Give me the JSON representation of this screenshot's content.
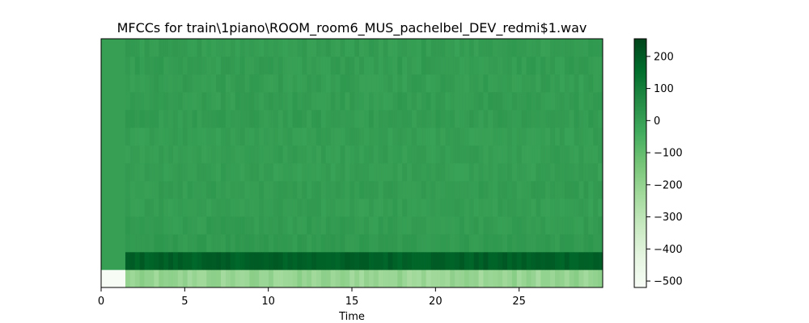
{
  "chart_data": {
    "type": "heatmap",
    "title": "MFCCs for train\\1piano\\ROOM_room6_MUS_pachelbel_DEV_redmi$1.wav",
    "xlabel": "Time",
    "ylabel": "",
    "colormap": "Greens",
    "xlim": [
      0,
      30
    ],
    "x_ticks": [
      {
        "value": 0,
        "label": "0"
      },
      {
        "value": 5,
        "label": "5"
      },
      {
        "value": 10,
        "label": "10"
      },
      {
        "value": 15,
        "label": "15"
      },
      {
        "value": 20,
        "label": "20"
      },
      {
        "value": 25,
        "label": "25"
      }
    ],
    "y_ticks_visible": false,
    "n_coefficients": 14,
    "silence_end_time": 1.45,
    "colorbar": {
      "range": [
        -520,
        255
      ],
      "ticks": [
        {
          "value": 200,
          "label": "200"
        },
        {
          "value": 100,
          "label": "100"
        },
        {
          "value": 0,
          "label": "0"
        },
        {
          "value": -100,
          "label": "−100"
        },
        {
          "value": -200,
          "label": "−200"
        },
        {
          "value": -300,
          "label": "−300"
        },
        {
          "value": -400,
          "label": "−400"
        },
        {
          "value": -500,
          "label": "−500"
        }
      ]
    },
    "coefficient_rows": [
      {
        "index": 0,
        "silence_value": -520,
        "mean_value": -210,
        "variation": 35
      },
      {
        "index": 1,
        "silence_value": 0,
        "mean_value": 190,
        "variation": 20
      },
      {
        "index": 2,
        "silence_value": 0,
        "mean_value": 15,
        "variation": 12
      },
      {
        "index": 3,
        "silence_value": 0,
        "mean_value": 10,
        "variation": 12
      },
      {
        "index": 4,
        "silence_value": 0,
        "mean_value": 5,
        "variation": 12
      },
      {
        "index": 5,
        "silence_value": 0,
        "mean_value": 8,
        "variation": 12
      },
      {
        "index": 6,
        "silence_value": 0,
        "mean_value": 3,
        "variation": 12
      },
      {
        "index": 7,
        "silence_value": 0,
        "mean_value": 6,
        "variation": 12
      },
      {
        "index": 8,
        "silence_value": 0,
        "mean_value": 4,
        "variation": 12
      },
      {
        "index": 9,
        "silence_value": 0,
        "mean_value": 10,
        "variation": 14
      },
      {
        "index": 10,
        "silence_value": 0,
        "mean_value": 8,
        "variation": 14
      },
      {
        "index": 11,
        "silence_value": 0,
        "mean_value": 6,
        "variation": 14
      },
      {
        "index": 12,
        "silence_value": 0,
        "mean_value": 9,
        "variation": 14
      },
      {
        "index": 13,
        "silence_value": 0,
        "mean_value": 7,
        "variation": 14
      }
    ]
  }
}
